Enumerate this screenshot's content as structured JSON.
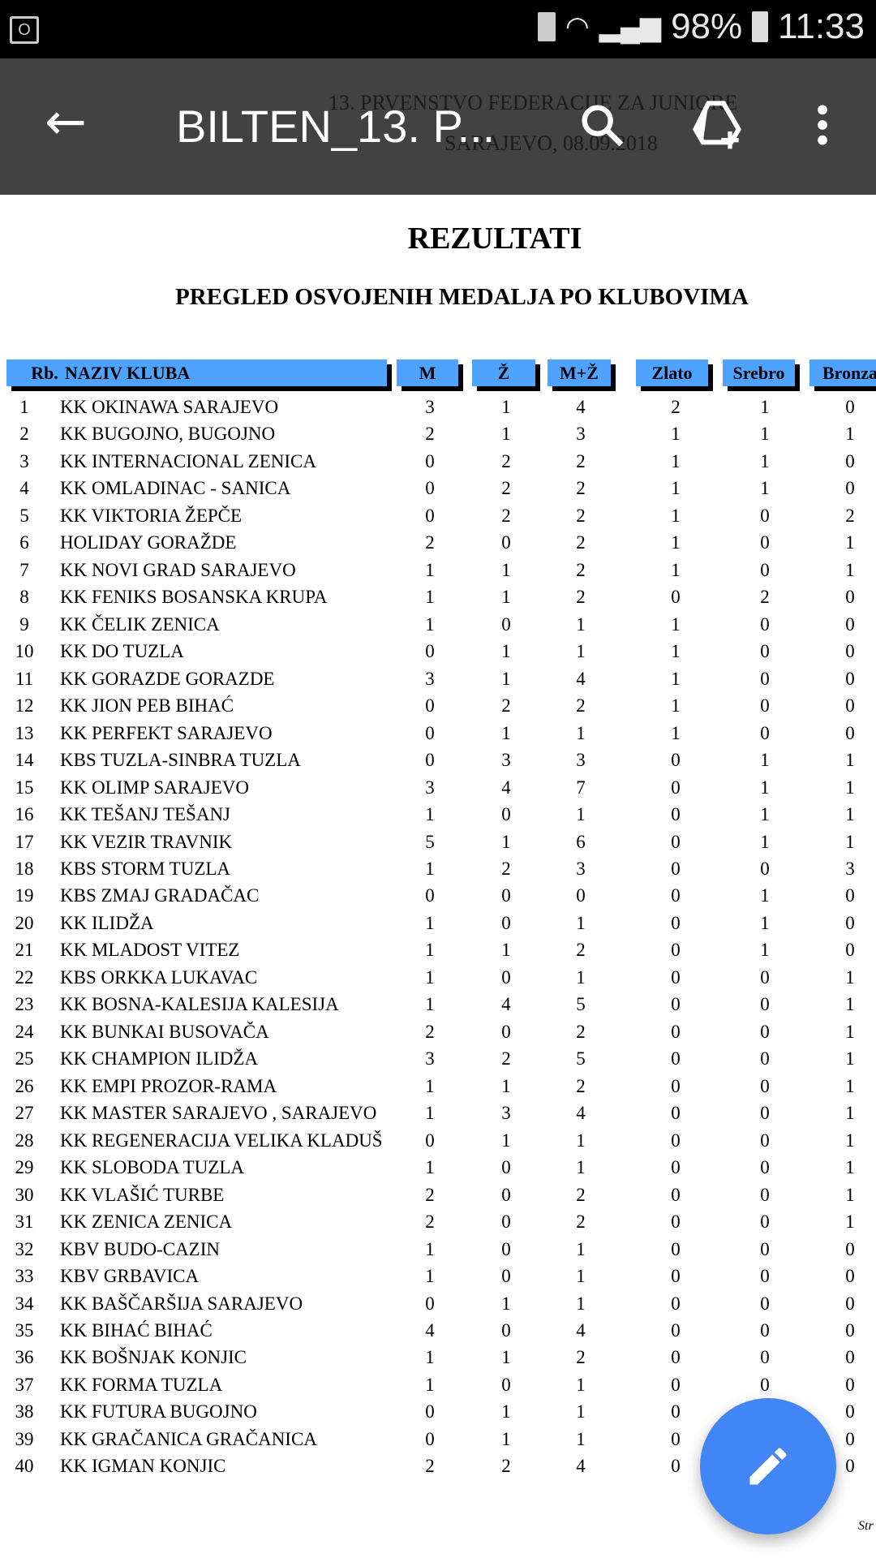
{
  "status_bar": {
    "battery": "98%",
    "time": "11:33"
  },
  "toolbar": {
    "title": "BILTEN_13. P...",
    "back_icon": "arrow-left-icon",
    "search_icon": "search-icon",
    "drive_icon": "drive-add-icon",
    "menu_icon": "more-vert-icon"
  },
  "document": {
    "header_line1": "13. PRVENSTVO FEDERACIJE ZA JUNIORE",
    "header_line2": "SARAJEVO, 08.09.2018",
    "title": "REZULTATI",
    "subtitle": "PREGLED OSVOJENIH MEDALJA PO KLUBOVIMA",
    "columns": [
      "Rb.",
      "NAZIV KLUBA",
      "M",
      "Ž",
      "M+Ž",
      "Zlato",
      "Srebro",
      "Bronza"
    ],
    "header_color": "#4da3ff",
    "rows": [
      [
        "1",
        "KK OKINAWA SARAJEVO",
        "3",
        "1",
        "4",
        "2",
        "1",
        "0"
      ],
      [
        "2",
        "KK BUGOJNO, BUGOJNO",
        "2",
        "1",
        "3",
        "1",
        "1",
        "1"
      ],
      [
        "3",
        "KK INTERNACIONAL ZENICA",
        "0",
        "2",
        "2",
        "1",
        "1",
        "0"
      ],
      [
        "4",
        "KK OMLADINAC - SANICA",
        "0",
        "2",
        "2",
        "1",
        "1",
        "0"
      ],
      [
        "5",
        "KK VIKTORIA ŽEPČE",
        "0",
        "2",
        "2",
        "1",
        "0",
        "2"
      ],
      [
        "6",
        "HOLIDAY GORAŽDE",
        "2",
        "0",
        "2",
        "1",
        "0",
        "1"
      ],
      [
        "7",
        "KK NOVI GRAD SARAJEVO",
        "1",
        "1",
        "2",
        "1",
        "0",
        "1"
      ],
      [
        "8",
        "KK FENIKS BOSANSKA KRUPA",
        "1",
        "1",
        "2",
        "0",
        "2",
        "0"
      ],
      [
        "9",
        "KK ČELIK ZENICA",
        "1",
        "0",
        "1",
        "1",
        "0",
        "0"
      ],
      [
        "10",
        "KK DO TUZLA",
        "0",
        "1",
        "1",
        "1",
        "0",
        "0"
      ],
      [
        "11",
        "KK GORAZDE GORAZDE",
        "3",
        "1",
        "4",
        "1",
        "0",
        "0"
      ],
      [
        "12",
        "KK JION PEB BIHAĆ",
        "0",
        "2",
        "2",
        "1",
        "0",
        "0"
      ],
      [
        "13",
        "KK PERFEKT SARAJEVO",
        "0",
        "1",
        "1",
        "1",
        "0",
        "0"
      ],
      [
        "14",
        "KBS TUZLA-SINBRA TUZLA",
        "0",
        "3",
        "3",
        "0",
        "1",
        "1"
      ],
      [
        "15",
        "KK OLIMP SARAJEVO",
        "3",
        "4",
        "7",
        "0",
        "1",
        "1"
      ],
      [
        "16",
        "KK TEŠANJ TEŠANJ",
        "1",
        "0",
        "1",
        "0",
        "1",
        "1"
      ],
      [
        "17",
        "KK VEZIR TRAVNIK",
        "5",
        "1",
        "6",
        "0",
        "1",
        "1"
      ],
      [
        "18",
        "KBS STORM TUZLA",
        "1",
        "2",
        "3",
        "0",
        "0",
        "3"
      ],
      [
        "19",
        "KBS ZMAJ GRADAČAC",
        "0",
        "0",
        "0",
        "0",
        "1",
        "0"
      ],
      [
        "20",
        "KK ILIDŽA",
        "1",
        "0",
        "1",
        "0",
        "1",
        "0"
      ],
      [
        "21",
        "KK MLADOST VITEZ",
        "1",
        "1",
        "2",
        "0",
        "1",
        "0"
      ],
      [
        "22",
        "KBS ORKKA LUKAVAC",
        "1",
        "0",
        "1",
        "0",
        "0",
        "1"
      ],
      [
        "23",
        "KK BOSNA-KALESIJA KALESIJA",
        "1",
        "4",
        "5",
        "0",
        "0",
        "1"
      ],
      [
        "24",
        "KK BUNKAI BUSOVAČA",
        "2",
        "0",
        "2",
        "0",
        "0",
        "1"
      ],
      [
        "25",
        "KK CHAMPION ILIDŽA",
        "3",
        "2",
        "5",
        "0",
        "0",
        "1"
      ],
      [
        "26",
        "KK EMPI PROZOR-RAMA",
        "1",
        "1",
        "2",
        "0",
        "0",
        "1"
      ],
      [
        "27",
        "KK MASTER SARAJEVO , SARAJEVO",
        "1",
        "3",
        "4",
        "0",
        "0",
        "1"
      ],
      [
        "28",
        "KK REGENERACIJA VELIKA KLADUŠ",
        "0",
        "1",
        "1",
        "0",
        "0",
        "1"
      ],
      [
        "29",
        "KK SLOBODA TUZLA",
        "1",
        "0",
        "1",
        "0",
        "0",
        "1"
      ],
      [
        "30",
        "KK VLAŠIĆ TURBE",
        "2",
        "0",
        "2",
        "0",
        "0",
        "1"
      ],
      [
        "31",
        "KK ZENICA ZENICA",
        "2",
        "0",
        "2",
        "0",
        "0",
        "1"
      ],
      [
        "32",
        "KBV BUDO-CAZIN",
        "1",
        "0",
        "1",
        "0",
        "0",
        "0"
      ],
      [
        "33",
        "KBV GRBAVICA",
        "1",
        "0",
        "1",
        "0",
        "0",
        "0"
      ],
      [
        "34",
        "KK BAŠČARŠIJA SARAJEVO",
        "0",
        "1",
        "1",
        "0",
        "0",
        "0"
      ],
      [
        "35",
        "KK BIHAĆ BIHAĆ",
        "4",
        "0",
        "4",
        "0",
        "0",
        "0"
      ],
      [
        "36",
        "KK BOŠNJAK KONJIC",
        "1",
        "1",
        "2",
        "0",
        "0",
        "0"
      ],
      [
        "37",
        "KK FORMA TUZLA",
        "1",
        "0",
        "1",
        "0",
        "0",
        "0"
      ],
      [
        "38",
        "KK FUTURA BUGOJNO",
        "0",
        "1",
        "1",
        "0",
        "",
        "0"
      ],
      [
        "39",
        "KK GRAČANICA GRAČANICA",
        "0",
        "1",
        "1",
        "0",
        "",
        "0"
      ],
      [
        "40",
        "KK IGMAN KONJIC",
        "2",
        "2",
        "4",
        "0",
        "",
        "0"
      ]
    ],
    "page_footer": "Str"
  },
  "fab": {
    "icon": "pencil-icon",
    "color": "#4285f4"
  }
}
